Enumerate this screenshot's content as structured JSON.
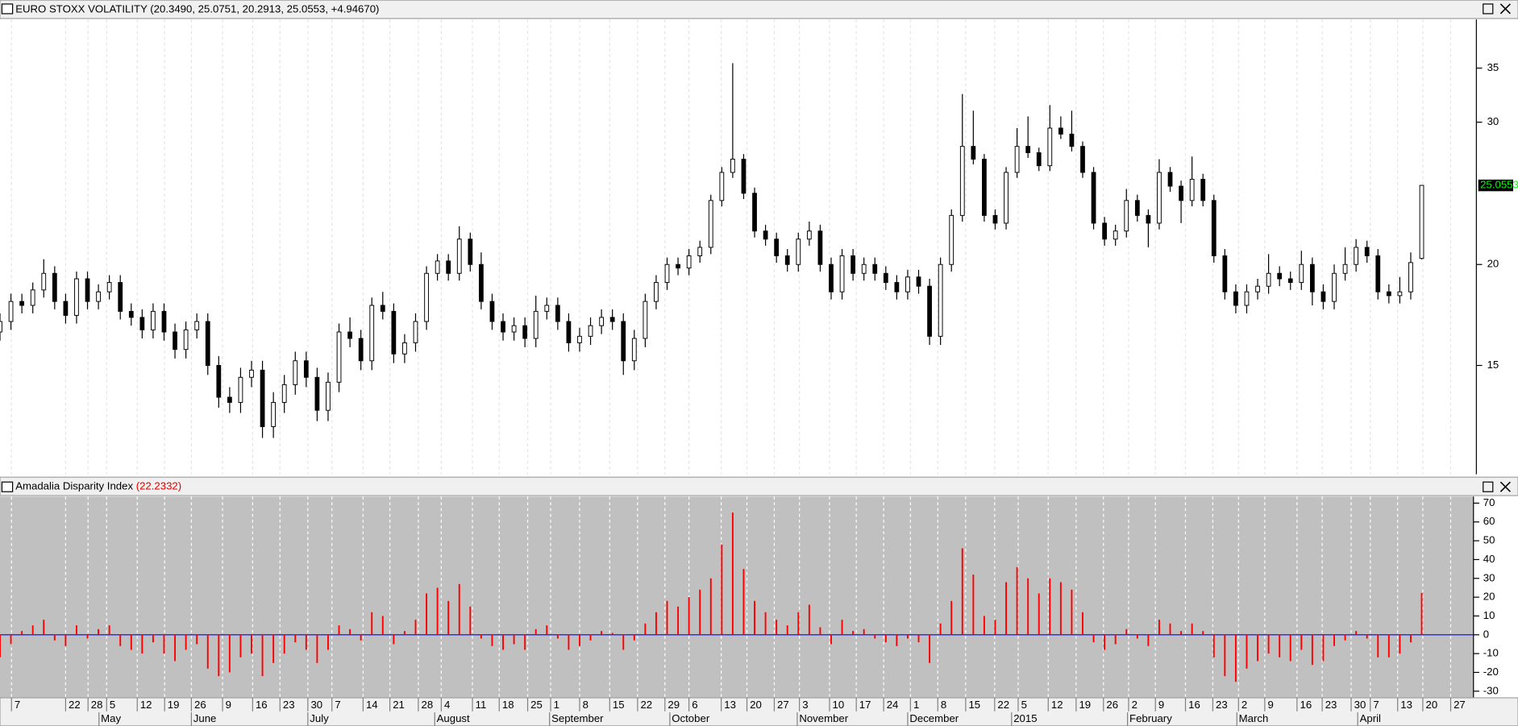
{
  "chart_data": [
    {
      "type": "candlestick",
      "title": "EURO STOXX VOLATILITY (20.3490, 25.0751, 20.2913, 25.0553, +4.94670)",
      "log_scale": true,
      "ylim": [
        11,
        40.2
      ],
      "yticks": [
        15,
        20,
        30,
        35
      ],
      "xlim": [
        0,
        270
      ],
      "grid": true,
      "up_color": "#ffffff",
      "down_color": "#000000",
      "last_price_color": "#00ff00",
      "x": [
        0,
        2,
        4,
        6,
        8,
        10,
        12,
        14,
        16,
        18,
        20,
        22,
        24,
        26,
        28,
        30,
        32,
        34,
        36,
        38,
        40,
        42,
        44,
        46,
        48,
        50,
        52,
        54,
        56,
        58,
        60,
        62,
        64,
        66,
        68,
        70,
        72,
        74,
        76,
        78,
        80,
        82,
        84,
        86,
        88,
        90,
        92,
        94,
        96,
        98,
        100,
        102,
        104,
        106,
        108,
        110,
        112,
        114,
        116,
        118,
        120,
        122,
        124,
        126,
        128,
        130,
        132,
        134,
        136,
        138,
        140,
        142,
        144,
        146,
        148,
        150,
        152,
        154,
        156,
        158,
        160,
        162,
        164,
        166,
        168,
        170,
        172,
        174,
        176,
        178,
        180,
        182,
        184,
        186,
        188,
        190,
        192,
        194,
        196,
        198,
        200,
        202,
        204,
        206,
        208,
        210,
        212,
        214,
        216,
        218,
        220,
        222,
        224,
        226,
        228,
        230,
        232,
        234,
        236,
        238,
        240,
        242,
        244,
        246,
        248,
        250,
        252,
        254,
        256,
        258,
        260
      ],
      "open": [
        16.5,
        17.0,
        18.0,
        17.8,
        18.6,
        19.5,
        18.0,
        17.3,
        19.2,
        18.0,
        18.5,
        19.0,
        17.5,
        17.2,
        16.6,
        17.5,
        16.5,
        15.7,
        16.6,
        17.0,
        15.0,
        13.7,
        13.5,
        14.5,
        14.8,
        12.6,
        13.5,
        14.2,
        15.2,
        14.5,
        13.2,
        14.3,
        16.5,
        16.2,
        15.2,
        17.8,
        17.5,
        15.5,
        16.0,
        17.0,
        19.5,
        20.2,
        19.5,
        21.5,
        20.0,
        18.0,
        17.0,
        16.5,
        16.8,
        16.2,
        17.5,
        17.8,
        17.0,
        16.0,
        16.3,
        16.8,
        17.2,
        17.0,
        15.2,
        16.2,
        18.0,
        19.0,
        20.0,
        19.8,
        20.5,
        21.0,
        24.0,
        26.0,
        27.0,
        24.5,
        22.0,
        21.5,
        20.5,
        20.0,
        21.5,
        22.0,
        20.0,
        18.5,
        20.5,
        19.5,
        20.0,
        19.5,
        19.0,
        18.5,
        19.3,
        18.8,
        16.3,
        20.0,
        23.0,
        28.0,
        27.0,
        23.0,
        22.5,
        26.0,
        28.0,
        27.5,
        26.5,
        29.5,
        29.0,
        28.0,
        26.0,
        22.5,
        21.5,
        22.0,
        24.0,
        23.0,
        22.5,
        26.0,
        25.0,
        24.0,
        25.5,
        24.0,
        20.5,
        18.5,
        17.8,
        18.5,
        18.8,
        19.5,
        19.2,
        19.0,
        20.0,
        18.5,
        18.0,
        19.5,
        20.0,
        21.0,
        20.5,
        18.5,
        18.3,
        18.5,
        20.349
      ],
      "high": [
        17.4,
        18.4,
        18.4,
        19.0,
        20.3,
        19.9,
        18.4,
        19.6,
        19.6,
        18.9,
        19.4,
        19.4,
        17.9,
        17.6,
        17.9,
        17.9,
        16.9,
        17.0,
        17.4,
        17.4,
        15.4,
        14.1,
        14.9,
        15.2,
        15.2,
        13.9,
        14.6,
        15.6,
        15.6,
        14.9,
        14.7,
        16.9,
        17.2,
        16.6,
        18.2,
        18.5,
        17.9,
        16.4,
        17.4,
        19.9,
        20.6,
        20.6,
        22.3,
        21.9,
        20.7,
        18.4,
        17.4,
        17.2,
        17.2,
        18.3,
        18.2,
        18.2,
        17.4,
        16.7,
        17.2,
        17.6,
        17.6,
        17.4,
        16.6,
        18.4,
        19.4,
        20.4,
        20.4,
        20.9,
        21.4,
        24.4,
        26.4,
        35.5,
        27.4,
        24.9,
        22.4,
        21.9,
        20.9,
        21.9,
        22.6,
        22.4,
        20.4,
        20.9,
        20.9,
        20.4,
        20.4,
        19.9,
        19.4,
        19.7,
        19.7,
        19.2,
        20.4,
        23.4,
        32.5,
        31.0,
        27.4,
        23.4,
        26.4,
        29.5,
        30.5,
        27.9,
        31.5,
        30.5,
        31.0,
        28.4,
        26.4,
        22.9,
        22.4,
        24.8,
        24.4,
        23.4,
        27.0,
        26.4,
        25.4,
        27.2,
        25.9,
        24.4,
        20.9,
        18.9,
        18.9,
        19.2,
        20.6,
        19.9,
        19.6,
        20.8,
        20.4,
        18.9,
        20.0,
        21.0,
        21.5,
        21.4,
        20.9,
        18.9,
        19.3,
        20.7,
        25.0751
      ],
      "low": [
        16.1,
        16.6,
        17.4,
        17.4,
        18.2,
        17.6,
        16.9,
        16.9,
        17.6,
        17.6,
        18.1,
        17.1,
        16.8,
        16.2,
        16.2,
        16.1,
        15.3,
        15.3,
        16.2,
        14.6,
        13.3,
        13.1,
        13.1,
        14.1,
        12.2,
        12.2,
        13.1,
        13.8,
        14.1,
        12.8,
        12.8,
        13.9,
        15.8,
        14.8,
        14.8,
        17.1,
        15.1,
        15.1,
        15.6,
        16.6,
        19.1,
        19.1,
        19.1,
        19.6,
        17.6,
        16.6,
        16.1,
        16.1,
        15.8,
        15.8,
        17.1,
        16.6,
        15.6,
        15.6,
        15.9,
        16.4,
        16.6,
        14.6,
        14.8,
        15.8,
        17.6,
        18.6,
        19.4,
        19.4,
        20.1,
        20.6,
        23.6,
        25.6,
        24.1,
        21.6,
        21.1,
        20.1,
        19.6,
        19.6,
        21.1,
        19.6,
        18.1,
        18.1,
        19.1,
        19.1,
        19.1,
        18.6,
        18.1,
        18.1,
        18.4,
        15.9,
        15.9,
        19.6,
        22.6,
        26.6,
        22.6,
        22.1,
        22.1,
        25.6,
        27.1,
        26.1,
        26.1,
        28.6,
        27.6,
        25.6,
        22.1,
        21.1,
        21.1,
        21.6,
        22.6,
        21.0,
        22.1,
        24.6,
        22.5,
        23.6,
        23.6,
        20.1,
        18.1,
        17.4,
        17.4,
        18.1,
        18.4,
        18.8,
        18.6,
        18.6,
        17.8,
        17.6,
        17.6,
        19.1,
        19.6,
        20.1,
        18.1,
        17.9,
        17.9,
        18.1,
        20.2913
      ],
      "close": [
        17.0,
        18.0,
        17.8,
        18.6,
        19.5,
        18.0,
        17.3,
        19.2,
        18.0,
        18.5,
        19.0,
        17.5,
        17.2,
        16.6,
        17.5,
        16.5,
        15.7,
        16.6,
        17.0,
        15.0,
        13.7,
        13.5,
        14.5,
        14.8,
        12.6,
        13.5,
        14.2,
        15.2,
        14.5,
        13.2,
        14.3,
        16.5,
        16.2,
        15.2,
        17.8,
        17.5,
        15.5,
        16.0,
        17.0,
        19.5,
        20.2,
        19.5,
        21.5,
        20.0,
        18.0,
        17.0,
        16.5,
        16.8,
        16.2,
        17.5,
        17.8,
        17.0,
        16.0,
        16.3,
        16.8,
        17.2,
        17.0,
        15.2,
        16.2,
        18.0,
        19.0,
        20.0,
        19.8,
        20.5,
        21.0,
        24.0,
        26.0,
        27.0,
        24.5,
        22.0,
        21.5,
        20.5,
        20.0,
        21.5,
        22.0,
        20.0,
        18.5,
        20.5,
        19.5,
        20.0,
        19.5,
        19.0,
        18.5,
        19.3,
        18.8,
        16.3,
        20.0,
        23.0,
        28.0,
        27.0,
        23.0,
        22.5,
        26.0,
        28.0,
        27.5,
        26.5,
        29.5,
        29.0,
        28.0,
        26.0,
        22.5,
        21.5,
        22.0,
        24.0,
        23.0,
        22.5,
        26.0,
        25.0,
        24.0,
        25.5,
        24.0,
        20.5,
        18.5,
        17.8,
        18.5,
        18.8,
        19.5,
        19.2,
        19.0,
        20.0,
        18.5,
        18.0,
        19.5,
        20.0,
        21.0,
        20.5,
        18.5,
        18.3,
        18.5,
        20.11,
        25.0553
      ]
    },
    {
      "type": "bar",
      "title": "Amadalia Disparity Index",
      "subtitle": "(22.2332)",
      "color": "#ff0000",
      "zero_line_color": "#0000ff",
      "ylim": [
        -33,
        73
      ],
      "yticks": [
        70,
        60,
        50,
        40,
        30,
        20,
        10,
        0,
        -10,
        -20,
        -30
      ],
      "xlim": [
        0,
        270
      ],
      "grid": true,
      "x": [
        0,
        2,
        4,
        6,
        8,
        10,
        12,
        14,
        16,
        18,
        20,
        22,
        24,
        26,
        28,
        30,
        32,
        34,
        36,
        38,
        40,
        42,
        44,
        46,
        48,
        50,
        52,
        54,
        56,
        58,
        60,
        62,
        64,
        66,
        68,
        70,
        72,
        74,
        76,
        78,
        80,
        82,
        84,
        86,
        88,
        90,
        92,
        94,
        96,
        98,
        100,
        102,
        104,
        106,
        108,
        110,
        112,
        114,
        116,
        118,
        120,
        122,
        124,
        126,
        128,
        130,
        132,
        134,
        136,
        138,
        140,
        142,
        144,
        146,
        148,
        150,
        152,
        154,
        156,
        158,
        160,
        162,
        164,
        166,
        168,
        170,
        172,
        174,
        176,
        178,
        180,
        182,
        184,
        186,
        188,
        190,
        192,
        194,
        196,
        198,
        200,
        202,
        204,
        206,
        208,
        210,
        212,
        214,
        216,
        218,
        220,
        222,
        224,
        226,
        228,
        230,
        232,
        234,
        236,
        238,
        240,
        242,
        244,
        246,
        248,
        250,
        252,
        254,
        256,
        258,
        260
      ],
      "values": [
        -12,
        -5,
        2,
        5,
        8,
        -3,
        -6,
        5,
        -2,
        3,
        5,
        -6,
        -8,
        -10,
        -4,
        -10,
        -14,
        -8,
        -5,
        -18,
        -22,
        -20,
        -12,
        -10,
        -22,
        -15,
        -10,
        -4,
        -8,
        -15,
        -8,
        5,
        3,
        -3,
        12,
        10,
        -5,
        2,
        8,
        22,
        25,
        18,
        27,
        15,
        -2,
        -6,
        -8,
        -5,
        -8,
        3,
        5,
        -2,
        -8,
        -6,
        -3,
        2,
        1,
        -8,
        -3,
        6,
        12,
        18,
        15,
        20,
        24,
        30,
        48,
        65,
        35,
        18,
        12,
        8,
        5,
        12,
        16,
        4,
        -5,
        8,
        2,
        3,
        -2,
        -4,
        -6,
        -2,
        -4,
        -15,
        6,
        18,
        46,
        32,
        10,
        8,
        28,
        36,
        30,
        22,
        30,
        28,
        24,
        12,
        -4,
        -8,
        -5,
        3,
        -2,
        -6,
        8,
        6,
        2,
        6,
        2,
        -12,
        -22,
        -25,
        -18,
        -14,
        -10,
        -12,
        -14,
        -8,
        -16,
        -14,
        -6,
        -3,
        2,
        -2,
        -12,
        -12,
        -10,
        -4,
        22.2332
      ],
      "xticks": [
        {
          "value": 2.1,
          "label": "7"
        },
        {
          "value": 12.0,
          "label": "22"
        },
        {
          "value": 16.1,
          "label": "28"
        },
        {
          "value": 19.5,
          "label": "5"
        },
        {
          "value": 25.1,
          "label": "12"
        },
        {
          "value": 30.1,
          "label": "19"
        },
        {
          "value": 35.0,
          "label": "26"
        },
        {
          "value": 40.7,
          "label": "9"
        },
        {
          "value": 46.2,
          "label": "16"
        },
        {
          "value": 51.2,
          "label": "23"
        },
        {
          "value": 56.3,
          "label": "30"
        },
        {
          "value": 60.7,
          "label": "7"
        },
        {
          "value": 66.4,
          "label": "14"
        },
        {
          "value": 71.3,
          "label": "21"
        },
        {
          "value": 76.5,
          "label": "28"
        },
        {
          "value": 80.7,
          "label": "4"
        },
        {
          "value": 86.4,
          "label": "11"
        },
        {
          "value": 91.3,
          "label": "18"
        },
        {
          "value": 96.5,
          "label": "25"
        },
        {
          "value": 100.7,
          "label": "1"
        },
        {
          "value": 106.0,
          "label": "8"
        },
        {
          "value": 111.5,
          "label": "15"
        },
        {
          "value": 116.6,
          "label": "22"
        },
        {
          "value": 121.6,
          "label": "29"
        },
        {
          "value": 126.0,
          "label": "6"
        },
        {
          "value": 131.9,
          "label": "13"
        },
        {
          "value": 136.6,
          "label": "20"
        },
        {
          "value": 141.6,
          "label": "27"
        },
        {
          "value": 146.2,
          "label": "3"
        },
        {
          "value": 151.7,
          "label": "10"
        },
        {
          "value": 156.6,
          "label": "17"
        },
        {
          "value": 161.6,
          "label": "24"
        },
        {
          "value": 166.5,
          "label": "1"
        },
        {
          "value": 171.5,
          "label": "8"
        },
        {
          "value": 176.6,
          "label": "15"
        },
        {
          "value": 181.9,
          "label": "22"
        },
        {
          "value": 186.2,
          "label": "5"
        },
        {
          "value": 191.7,
          "label": "12"
        },
        {
          "value": 196.8,
          "label": "19"
        },
        {
          "value": 201.8,
          "label": "26"
        },
        {
          "value": 206.4,
          "label": "2"
        },
        {
          "value": 211.3,
          "label": "9"
        },
        {
          "value": 216.8,
          "label": "16"
        },
        {
          "value": 221.8,
          "label": "23"
        },
        {
          "value": 226.5,
          "label": "2"
        },
        {
          "value": 231.3,
          "label": "9"
        },
        {
          "value": 237.2,
          "label": "16"
        },
        {
          "value": 241.8,
          "label": "23"
        },
        {
          "value": 247.1,
          "label": "30"
        },
        {
          "value": 250.6,
          "label": "7"
        },
        {
          "value": 255.6,
          "label": "13"
        },
        {
          "value": 260.2,
          "label": "20"
        },
        {
          "value": 265.3,
          "label": "27"
        }
      ],
      "month_ticks": [
        {
          "value": 18.1,
          "label": "May"
        },
        {
          "value": 35.0,
          "label": "June"
        },
        {
          "value": 56.3,
          "label": "July"
        },
        {
          "value": 79.5,
          "label": "August"
        },
        {
          "value": 100.5,
          "label": "September"
        },
        {
          "value": 122.5,
          "label": "October"
        },
        {
          "value": 145.8,
          "label": "November"
        },
        {
          "value": 166.0,
          "label": "December"
        },
        {
          "value": 185.0,
          "label": "2015"
        },
        {
          "value": 206.2,
          "label": "February"
        },
        {
          "value": 226.2,
          "label": "March"
        },
        {
          "value": 248.3,
          "label": "April"
        }
      ]
    }
  ]
}
